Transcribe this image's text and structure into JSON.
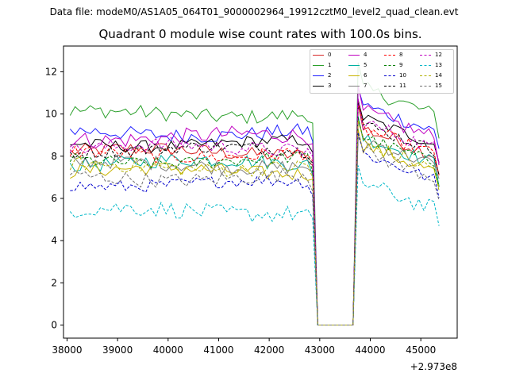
{
  "header": {
    "suptitle": "Data file: modeM0/AS1A05_064T01_9000002964_19912cztM0_level2_quad_clean.evt"
  },
  "chart_data": {
    "type": "line",
    "title": "Quadrant 0 module wise count rates with 100.0s bins.",
    "xlabel": "",
    "ylabel": "",
    "x_offset_text": "+2.973e8",
    "x_offset_value": 297300000,
    "xlim": [
      37930,
      45720
    ],
    "ylim": [
      -0.62,
      13.22
    ],
    "xticks": [
      38000,
      39000,
      40000,
      41000,
      42000,
      43000,
      44000,
      45000
    ],
    "xtick_labels": [
      "38000",
      "39000",
      "40000",
      "41000",
      "42000",
      "43000",
      "44000",
      "45000"
    ],
    "yticks": [
      0,
      2,
      4,
      6,
      8,
      10,
      12
    ],
    "ytick_labels": [
      "0",
      "2",
      "4",
      "6",
      "8",
      "10",
      "12"
    ],
    "bin_width": 100,
    "x_start": 38060,
    "gap_start": 42860,
    "gap_end": 43760,
    "x_end": 45360,
    "legend_position": "upper right",
    "series": [
      {
        "name": "0",
        "color": "#d62728",
        "dash": false,
        "base_level": 8.2,
        "post_level": 9.4,
        "noise": 0.35
      },
      {
        "name": "1",
        "color": "#2ca02c",
        "dash": false,
        "base_level": 10.0,
        "post_level": 11.3,
        "noise": 0.35
      },
      {
        "name": "2",
        "color": "#1f1fff",
        "dash": false,
        "base_level": 9.1,
        "post_level": 10.5,
        "noise": 0.35
      },
      {
        "name": "3",
        "color": "#000000",
        "dash": false,
        "base_level": 8.6,
        "post_level": 9.9,
        "noise": 0.3
      },
      {
        "name": "4",
        "color": "#c000c0",
        "dash": false,
        "base_level": 8.9,
        "post_level": 10.2,
        "noise": 0.4
      },
      {
        "name": "5",
        "color": "#00b0a0",
        "dash": false,
        "base_level": 7.7,
        "post_level": 9.0,
        "noise": 0.35
      },
      {
        "name": "6",
        "color": "#c8b400",
        "dash": false,
        "base_level": 7.3,
        "post_level": 8.6,
        "noise": 0.35
      },
      {
        "name": "7",
        "color": "#808080",
        "dash": false,
        "base_level": 7.6,
        "post_level": 8.9,
        "noise": 0.35
      },
      {
        "name": "8",
        "color": "#ff0000",
        "dash": true,
        "base_level": 8.1,
        "post_level": 9.4,
        "noise": 0.35
      },
      {
        "name": "9",
        "color": "#008000",
        "dash": true,
        "base_level": 7.8,
        "post_level": 9.0,
        "noise": 0.3
      },
      {
        "name": "10",
        "color": "#0000cc",
        "dash": true,
        "base_level": 6.7,
        "post_level": 8.2,
        "noise": 0.3
      },
      {
        "name": "11",
        "color": "#000000",
        "dash": true,
        "base_level": 8.3,
        "post_level": 9.6,
        "noise": 0.3
      },
      {
        "name": "12",
        "color": "#c000c0",
        "dash": true,
        "base_level": 8.4,
        "post_level": 9.7,
        "noise": 0.35
      },
      {
        "name": "13",
        "color": "#00b8c8",
        "dash": true,
        "base_level": 5.4,
        "post_level": 6.8,
        "noise": 0.4
      },
      {
        "name": "14",
        "color": "#b0b000",
        "dash": true,
        "base_level": 7.5,
        "post_level": 8.7,
        "noise": 0.35
      },
      {
        "name": "15",
        "color": "#707070",
        "dash": true,
        "base_level": 7.0,
        "post_level": 8.3,
        "noise": 0.35
      }
    ]
  }
}
